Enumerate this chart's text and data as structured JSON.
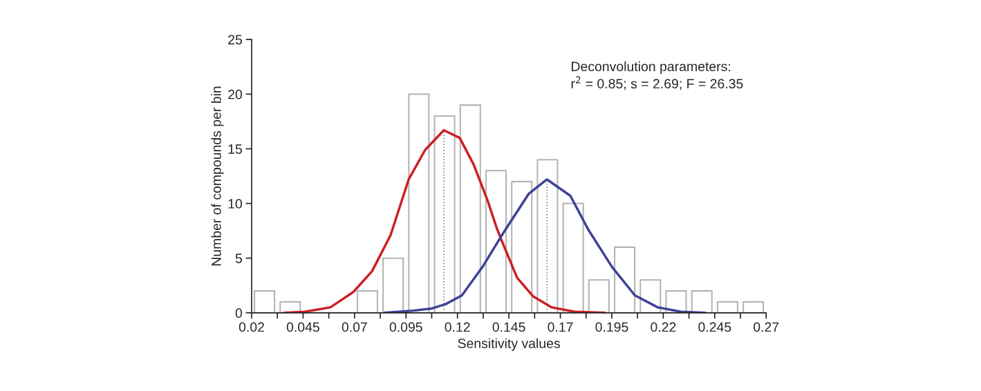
{
  "chart_data": {
    "type": "histogram",
    "xlabel": "Sensitivity values",
    "ylabel": "Number of compounds per bin",
    "bins": [
      0.02,
      0.0325,
      0.045,
      0.0575,
      0.07,
      0.0825,
      0.095,
      0.1075,
      0.12,
      0.1325,
      0.145,
      0.1575,
      0.17,
      0.1825,
      0.195,
      0.2075,
      0.22,
      0.2325,
      0.245,
      0.2575,
      0.27
    ],
    "values": [
      2,
      1,
      0,
      0,
      2,
      5,
      20,
      18,
      19,
      13,
      12,
      14,
      10,
      3,
      6,
      3,
      2,
      2,
      1,
      1
    ],
    "color": "#b4b4b4",
    "series": [
      {
        "type": "line",
        "color": "#cc1f24",
        "x": [
          0.0358,
          0.0459,
          0.0583,
          0.0694,
          0.0785,
          0.0875,
          0.0963,
          0.1043,
          0.1134,
          0.1211,
          0.1278,
          0.1346,
          0.139,
          0.1413,
          0.149,
          0.1568,
          0.1658,
          0.1769,
          0.1917
        ],
        "values": [
          0,
          0.1,
          0.5,
          1.9,
          3.8,
          7.1,
          12.2,
          14.9,
          16.7,
          16.0,
          13.6,
          10.3,
          7.8,
          6.7,
          3.2,
          1.5,
          0.5,
          0.1,
          0
        ]
      },
      {
        "type": "line",
        "color": "#3d4296",
        "x": [
          0.0845,
          0.0986,
          0.1077,
          0.1144,
          0.1222,
          0.1322,
          0.139,
          0.1433,
          0.1547,
          0.1635,
          0.1749,
          0.1836,
          0.1951,
          0.2062,
          0.2173,
          0.2287,
          0.2404
        ],
        "values": [
          0,
          0.2,
          0.4,
          0.8,
          1.6,
          4.2,
          6.3,
          7.6,
          10.9,
          12.2,
          10.7,
          7.6,
          4.2,
          1.6,
          0.5,
          0.1,
          0
        ]
      },
      {
        "type": "line",
        "color": "#808080",
        "line_style": "dotted",
        "x": [
          0.1134,
          0.1134
        ],
        "values": [
          0,
          16.7
        ]
      },
      {
        "type": "line",
        "color": "#808080",
        "line_style": "dotted",
        "x": [
          0.1635,
          0.1635
        ],
        "values": [
          0,
          12.2
        ]
      }
    ],
    "annotations": [
      "Deconvolution parameters:\nr$^{2}$ = 0.85; s = 2.69; F = 26.35"
    ],
    "xlim": [
      0.02,
      0.27
    ],
    "ylim": [
      0,
      25
    ],
    "xticks": [
      0.02,
      {
        "value": 0.0325,
        "label": null
      },
      0.045,
      {
        "value": 0.0575,
        "label": null
      },
      0.07,
      {
        "value": 0.0825,
        "label": null
      },
      0.095,
      {
        "value": 0.1075,
        "label": null
      },
      0.12,
      {
        "value": 0.1325,
        "label": null
      },
      0.145,
      {
        "value": 0.1575,
        "label": null
      },
      0.17,
      {
        "value": 0.1825,
        "label": null
      },
      0.195,
      {
        "value": 0.2075,
        "label": null
      },
      0.22,
      {
        "value": 0.2325,
        "label": null
      },
      0.245,
      {
        "value": 0.2575,
        "label": null
      },
      0.27
    ],
    "yticks": [
      0,
      5,
      10,
      15,
      20,
      25
    ],
    "grid": false,
    "legend": false
  }
}
